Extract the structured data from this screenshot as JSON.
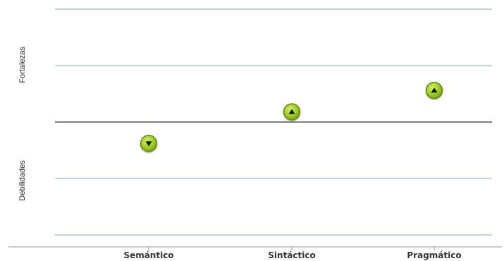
{
  "chart_data": {
    "type": "scatter",
    "categories": [
      "Semántico",
      "Sintáctico",
      "Pragmático"
    ],
    "values": [
      -0.38,
      0.18,
      0.56
    ],
    "directions": [
      "down",
      "up",
      "up"
    ],
    "ylim": [
      -2,
      2
    ],
    "y_gridlines": [
      -2,
      -1,
      0,
      1,
      2
    ],
    "grid": true,
    "upper_label": "Fortalezas",
    "lower_label": "Debilidades",
    "colors": {
      "marker_fill": "#9ccc1c",
      "marker_stroke": "#5d8a0c",
      "arrow": "#111111",
      "grid": "#a9c4e3",
      "zero_line": "#7f7f7f"
    }
  }
}
